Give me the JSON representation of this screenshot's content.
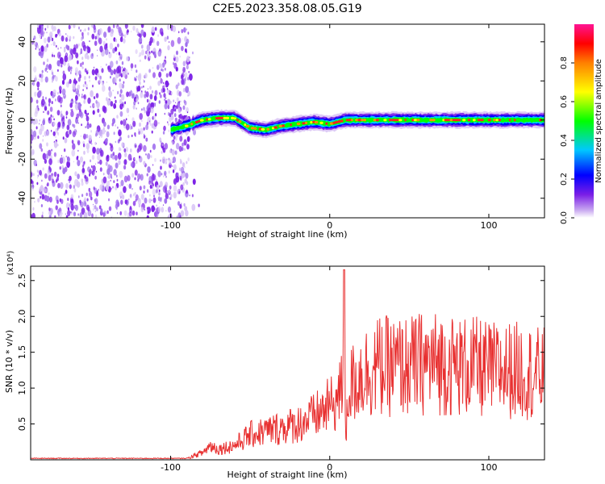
{
  "figure": {
    "title": "C2E5.2023.358.08.05.G19"
  },
  "chart_data": [
    {
      "type": "heatmap",
      "xlabel": "Height of straight line (km)",
      "ylabel": "Frequency (Hz)",
      "xlim": [
        -188,
        135
      ],
      "ylim": [
        -50,
        49
      ],
      "xticks": [
        -100,
        0,
        100
      ],
      "yticks": [
        -40,
        -20,
        0,
        20,
        40
      ],
      "colorbar": {
        "label": "Normalized spectral amplitude",
        "range": [
          0.0,
          1.0
        ],
        "ticks": [
          0.0,
          0.2,
          0.4,
          0.6,
          0.8
        ],
        "colormap": [
          "#ffffff",
          "#c8a8f0",
          "#7a1ee6",
          "#0000ff",
          "#00c8ff",
          "#00ff00",
          "#ffff00",
          "#ff8000",
          "#ff0000",
          "#ff1493"
        ]
      },
      "noise_region_x": [
        -188,
        -88
      ],
      "signal_start_x": -100,
      "signal_center_freq": [
        [
          -100,
          -5
        ],
        [
          -90,
          -3
        ],
        [
          -80,
          0
        ],
        [
          -70,
          1
        ],
        [
          -60,
          1
        ],
        [
          -50,
          -4
        ],
        [
          -40,
          -5
        ],
        [
          -30,
          -3
        ],
        [
          -20,
          -2
        ],
        [
          -10,
          -1
        ],
        [
          0,
          -2
        ],
        [
          10,
          0
        ],
        [
          20,
          0
        ],
        [
          40,
          0
        ],
        [
          60,
          0
        ],
        [
          80,
          0
        ],
        [
          100,
          0
        ],
        [
          120,
          0
        ],
        [
          135,
          0
        ]
      ]
    },
    {
      "type": "line",
      "xlabel": "Height of straight line (km)",
      "ylabel": "SNR (10 * v/v)",
      "y_multiplier": "(x10⁴)",
      "xlim": [
        -188,
        135
      ],
      "ylim": [
        0,
        2.7
      ],
      "xticks": [
        -100,
        0,
        100
      ],
      "yticks": [
        0.5,
        1.0,
        1.5,
        2.0,
        2.5
      ],
      "series": [
        {
          "color": "#e83030",
          "values": [
            [
              -188,
              0.02
            ],
            [
              -150,
              0.02
            ],
            [
              -100,
              0.02
            ],
            [
              -90,
              0.02
            ],
            [
              -80,
              0.1
            ],
            [
              -75,
              0.2
            ],
            [
              -70,
              0.15
            ],
            [
              -60,
              0.2
            ],
            [
              -50,
              0.35
            ],
            [
              -40,
              0.4
            ],
            [
              -30,
              0.45
            ],
            [
              -20,
              0.5
            ],
            [
              -10,
              0.6
            ],
            [
              0,
              0.75
            ],
            [
              5,
              0.85
            ],
            [
              8,
              1.0
            ],
            [
              9,
              2.65
            ],
            [
              10,
              0.3
            ],
            [
              12,
              1.0
            ],
            [
              20,
              1.2
            ],
            [
              30,
              1.3
            ],
            [
              40,
              1.3
            ],
            [
              50,
              1.3
            ],
            [
              60,
              1.35
            ],
            [
              70,
              1.35
            ],
            [
              80,
              1.3
            ],
            [
              90,
              1.3
            ],
            [
              100,
              1.25
            ],
            [
              110,
              1.25
            ],
            [
              120,
              1.25
            ],
            [
              130,
              1.2
            ],
            [
              135,
              1.2
            ]
          ]
        }
      ]
    }
  ]
}
